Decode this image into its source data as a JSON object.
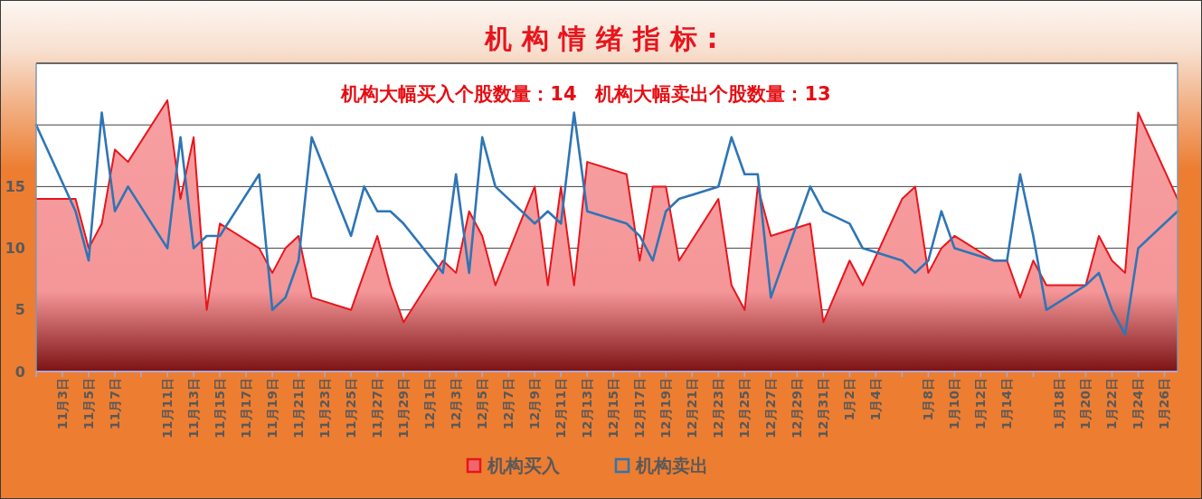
{
  "chart_data": {
    "type": "area",
    "title": "机构情绪指标:",
    "subtitle": "机构大幅买入个股数量：14　机构大幅卖出个股数量：13",
    "categories": [
      null,
      null,
      "11月3日",
      null,
      "11月5日",
      null,
      "11月7日",
      null,
      null,
      null,
      "11月11日",
      null,
      "11月13日",
      null,
      "11月15日",
      null,
      "11月17日",
      null,
      "11月19日",
      null,
      "11月21日",
      null,
      "11月23日",
      null,
      "11月25日",
      null,
      "11月27日",
      null,
      "11月29日",
      null,
      "12月1日",
      null,
      "12月3日",
      null,
      "12月5日",
      null,
      "12月7日",
      null,
      "12月9日",
      null,
      "12月11日",
      null,
      "12月13日",
      null,
      "12月15日",
      null,
      "12月17日",
      null,
      "12月19日",
      null,
      "12月21日",
      null,
      "12月23日",
      null,
      "12月25日",
      null,
      "12月27日",
      null,
      "12月29日",
      null,
      "12月31日",
      null,
      "1月2日",
      null,
      "1月4日",
      null,
      null,
      null,
      "1月8日",
      null,
      "1月10日",
      null,
      "1月12日",
      null,
      "1月14日",
      null,
      null,
      null,
      "1月18日",
      null,
      "1月20日",
      null,
      "1月22日",
      null,
      "1月24日",
      null,
      "1月26日",
      null
    ],
    "series": [
      {
        "name": "机构买入",
        "color": "#e8151b",
        "values": [
          14,
          null,
          null,
          14,
          10,
          12,
          18,
          17,
          null,
          null,
          22,
          14,
          19,
          5,
          12,
          null,
          null,
          10,
          8,
          10,
          11,
          6,
          null,
          null,
          5,
          8,
          11,
          7,
          4,
          null,
          null,
          9,
          8,
          13,
          11,
          7,
          null,
          null,
          15,
          7,
          15,
          7,
          17,
          null,
          null,
          16,
          9,
          15,
          15,
          9,
          null,
          null,
          14,
          7,
          5,
          15,
          11,
          null,
          null,
          12,
          4,
          null,
          9,
          7,
          null,
          null,
          14,
          15,
          8,
          10,
          11,
          null,
          null,
          9,
          9,
          6,
          9,
          7,
          null,
          null,
          7,
          11,
          9,
          8,
          21,
          null,
          null,
          14
        ]
      },
      {
        "name": "机构卖出",
        "type": "line",
        "color": "#2e75b6",
        "values": [
          20,
          null,
          null,
          13,
          9,
          21,
          13,
          15,
          null,
          null,
          10,
          19,
          10,
          11,
          11,
          null,
          null,
          16,
          5,
          6,
          9,
          19,
          null,
          null,
          11,
          15,
          13,
          13,
          12,
          null,
          null,
          8,
          16,
          8,
          19,
          15,
          null,
          null,
          12,
          13,
          12,
          21,
          13,
          null,
          null,
          12,
          11,
          9,
          13,
          14,
          null,
          null,
          15,
          19,
          16,
          16,
          6,
          null,
          null,
          15,
          13,
          null,
          12,
          10,
          null,
          null,
          9,
          8,
          9,
          13,
          10,
          null,
          null,
          9,
          9,
          16,
          11,
          5,
          null,
          null,
          7,
          8,
          5,
          3,
          10,
          null,
          null,
          13
        ]
      }
    ],
    "ylim": [
      0,
      25
    ],
    "yticks": [
      0,
      5,
      10,
      15,
      {
        "value": 20,
        "label": null
      },
      {
        "value": 25,
        "label": null
      }
    ],
    "grid": "y",
    "legend": "bottom"
  }
}
